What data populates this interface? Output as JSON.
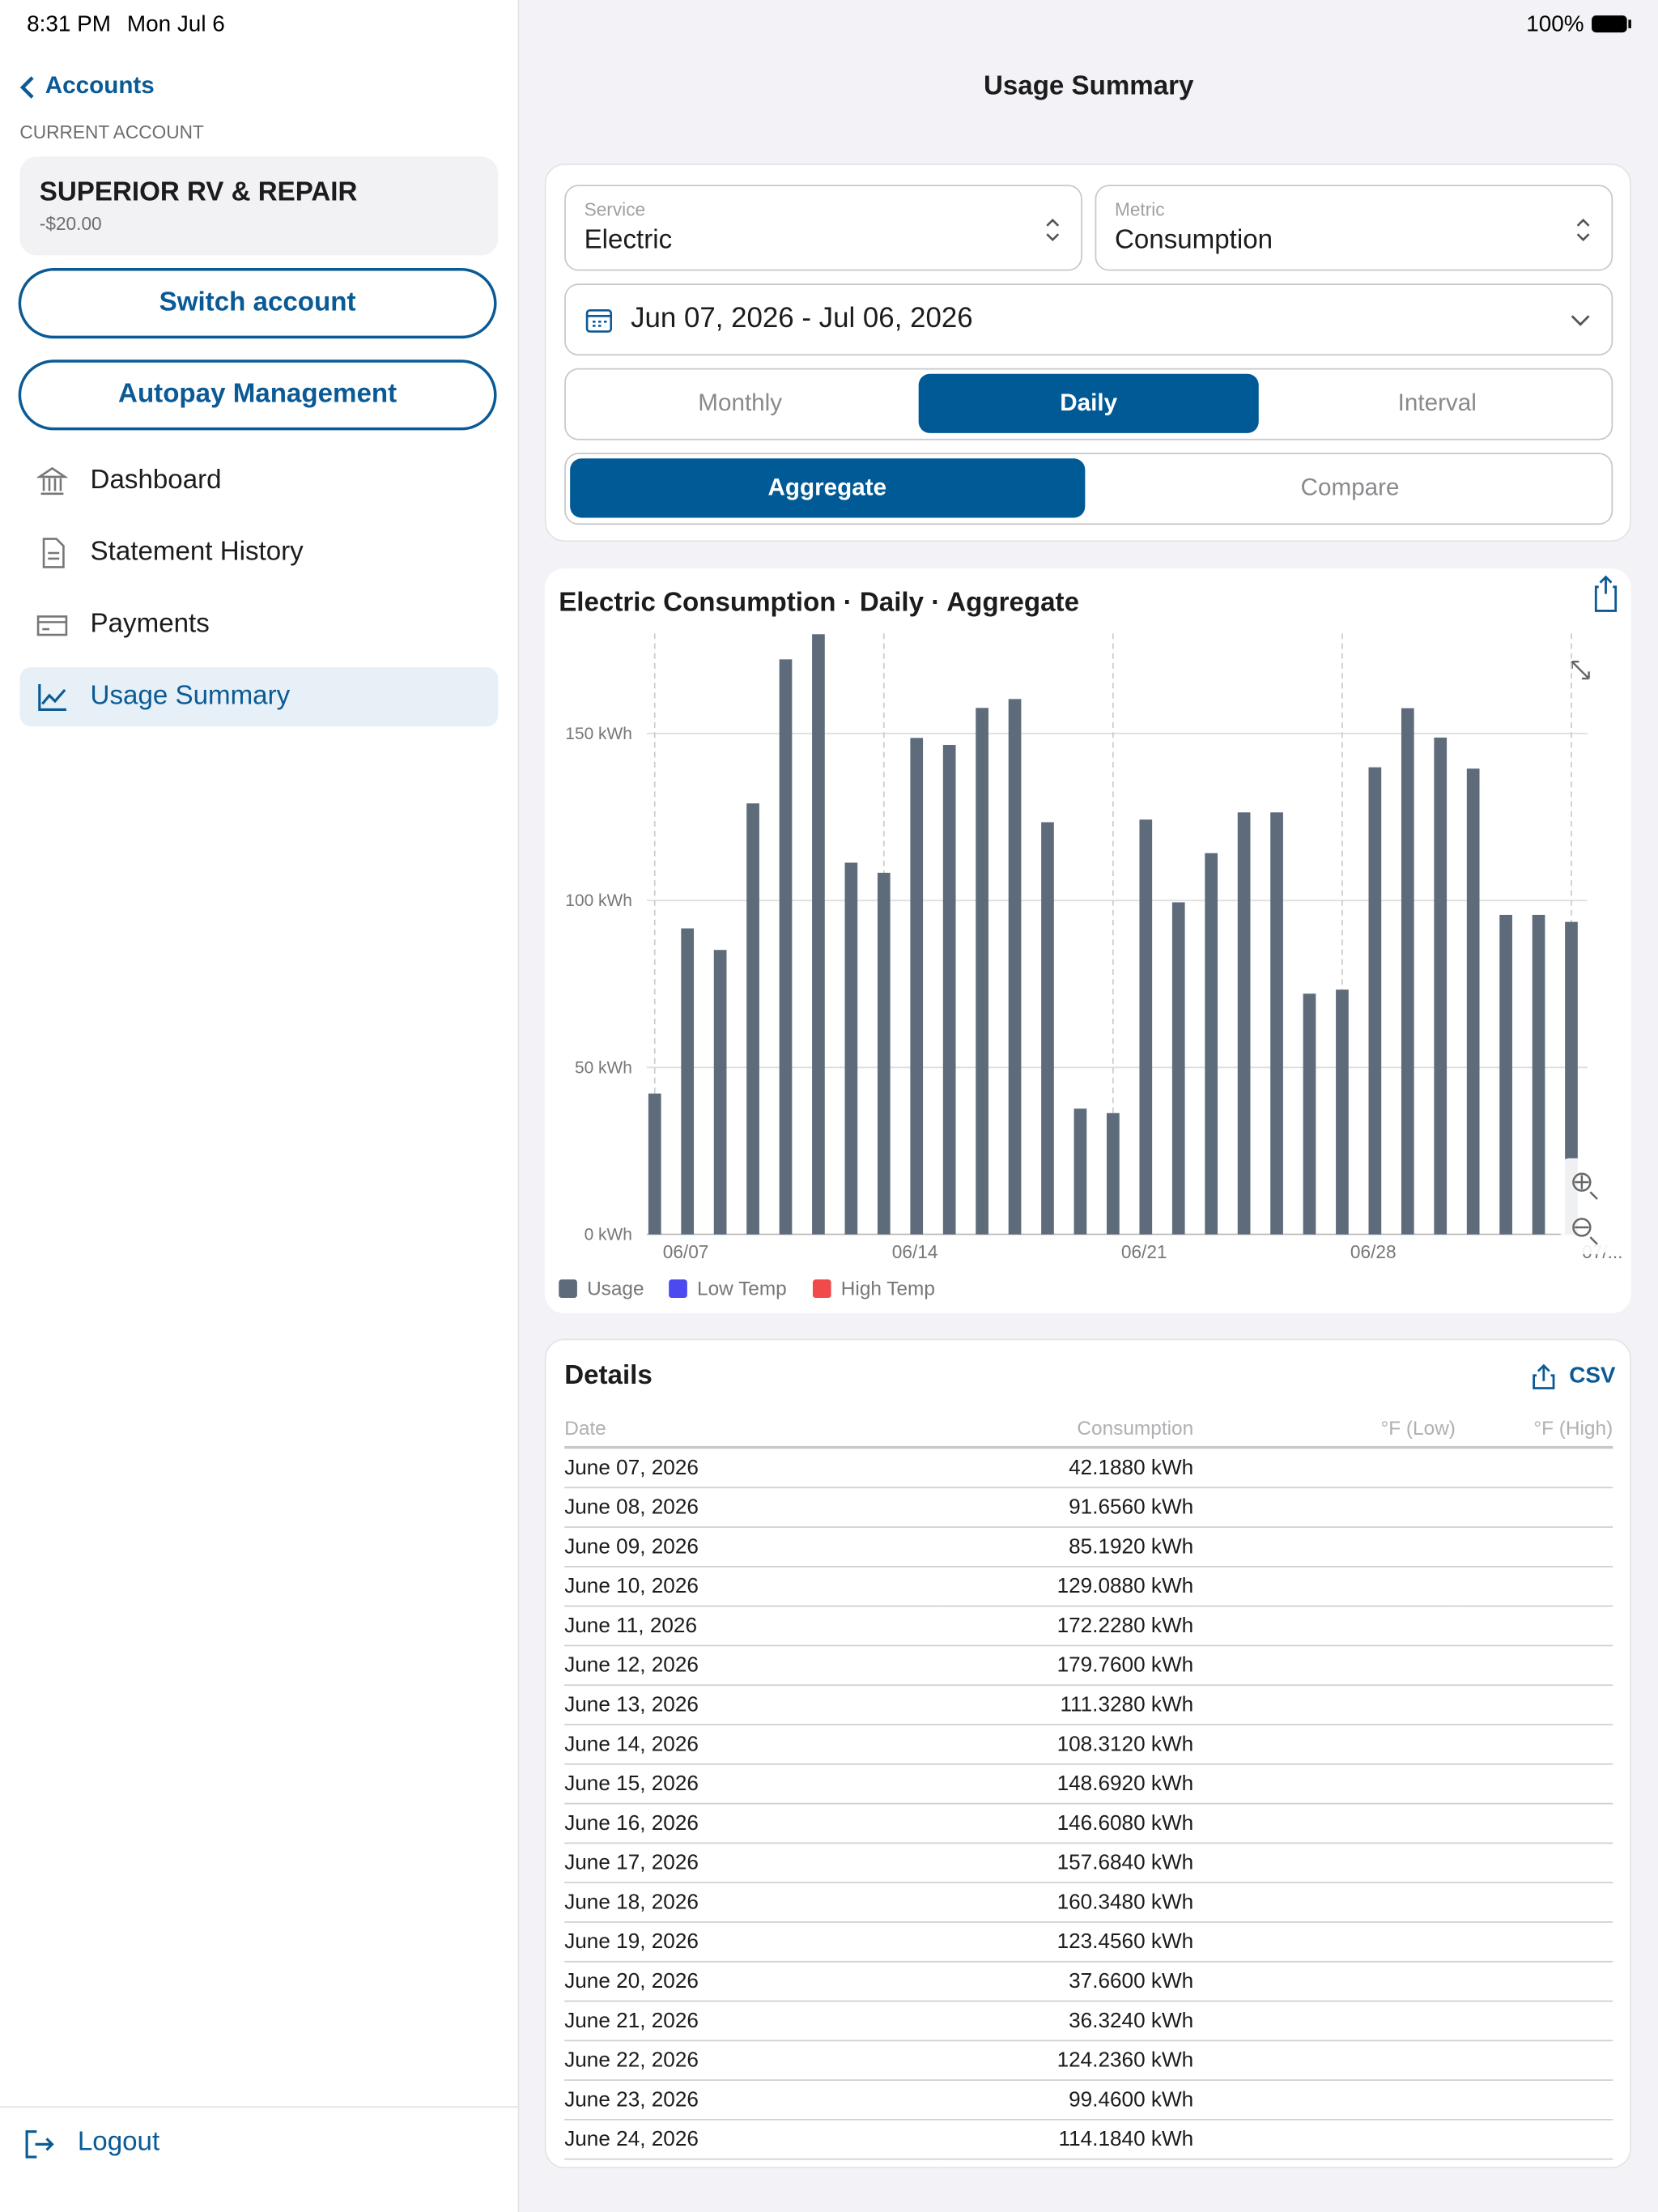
{
  "status": {
    "time": "8:31 PM",
    "date": "Mon Jul 6",
    "battery": "100%"
  },
  "sidebar": {
    "back": "Accounts",
    "current_label": "CURRENT ACCOUNT",
    "account_name": "SUPERIOR RV & REPAIR",
    "balance": "-$20.00",
    "buttons": [
      "Switch account",
      "Autopay Management"
    ],
    "nav": [
      "Dashboard",
      "Statement History",
      "Payments",
      "Usage Summary"
    ],
    "nav_selected": 3,
    "logout": "Logout"
  },
  "header": {
    "title": "Usage Summary"
  },
  "filters": {
    "service_label": "Service",
    "service": "Electric",
    "metric_label": "Metric",
    "metric": "Consumption",
    "date_range": "Jun 07, 2026 - Jul 06, 2026",
    "period_options": [
      "Monthly",
      "Daily",
      "Interval"
    ],
    "period_selected": 1,
    "mode_options": [
      "Aggregate",
      "Compare"
    ],
    "mode_selected": 0
  },
  "chart_data": {
    "type": "bar",
    "title": "Electric Consumption · Daily · Aggregate",
    "categories": [
      "06/07",
      null,
      null,
      null,
      null,
      null,
      null,
      "06/14",
      null,
      null,
      null,
      null,
      null,
      null,
      "06/21",
      null,
      null,
      null,
      null,
      null,
      null,
      "06/28",
      null,
      null,
      null,
      null,
      null,
      null,
      "07/..."
    ],
    "series": [
      {
        "name": "Usage",
        "color": "#5d6b7a",
        "values": [
          42.188,
          91.656,
          85.192,
          129.088,
          172.228,
          179.76,
          111.328,
          108.312,
          148.692,
          146.608,
          157.684,
          160.348,
          123.456,
          37.66,
          36.324,
          124.236,
          99.46,
          114.184,
          126.4,
          126.4,
          72.1,
          73.3,
          139.9,
          157.6,
          148.8,
          139.5,
          95.7,
          95.7,
          93.6
        ]
      },
      {
        "name": "Low Temp",
        "color": "#4a4af0",
        "values": [
          null,
          null,
          null,
          null,
          null,
          null,
          null,
          null,
          null,
          null,
          null,
          null,
          null,
          null,
          null,
          null,
          null,
          null,
          null,
          null,
          null,
          null,
          null,
          null,
          null,
          null,
          null,
          null,
          null
        ]
      },
      {
        "name": "High Temp",
        "color": "#f04a4a",
        "values": [
          null,
          null,
          null,
          null,
          null,
          null,
          null,
          null,
          null,
          null,
          null,
          null,
          null,
          null,
          null,
          null,
          null,
          null,
          null,
          null,
          null,
          null,
          null,
          null,
          null,
          null,
          null,
          null,
          null
        ]
      }
    ],
    "ylim": [
      0,
      180
    ],
    "yticks": [
      {
        "value": 0,
        "label": "0 kWh"
      },
      {
        "value": 50,
        "label": "50 kWh"
      },
      {
        "value": 100,
        "label": "100 kWh"
      },
      {
        "value": 150,
        "label": "150 kWh"
      }
    ],
    "grid": true
  },
  "details": {
    "title": "Details",
    "export": "CSV",
    "columns": [
      "Date",
      "Consumption",
      "°F (Low)",
      "°F (High)"
    ],
    "rows": [
      [
        "June 07, 2026",
        "42.1880 kWh"
      ],
      [
        "June 08, 2026",
        "91.6560 kWh"
      ],
      [
        "June 09, 2026",
        "85.1920 kWh"
      ],
      [
        "June 10, 2026",
        "129.0880 kWh"
      ],
      [
        "June 11, 2026",
        "172.2280 kWh"
      ],
      [
        "June 12, 2026",
        "179.7600 kWh"
      ],
      [
        "June 13, 2026",
        "111.3280 kWh"
      ],
      [
        "June 14, 2026",
        "108.3120 kWh"
      ],
      [
        "June 15, 2026",
        "148.6920 kWh"
      ],
      [
        "June 16, 2026",
        "146.6080 kWh"
      ],
      [
        "June 17, 2026",
        "157.6840 kWh"
      ],
      [
        "June 18, 2026",
        "160.3480 kWh"
      ],
      [
        "June 19, 2026",
        "123.4560 kWh"
      ],
      [
        "June 20, 2026",
        "37.6600 kWh"
      ],
      [
        "June 21, 2026",
        "36.3240 kWh"
      ],
      [
        "June 22, 2026",
        "124.2360 kWh"
      ],
      [
        "June 23, 2026",
        "99.4600 kWh"
      ],
      [
        "June 24, 2026",
        "114.1840 kWh"
      ]
    ]
  }
}
